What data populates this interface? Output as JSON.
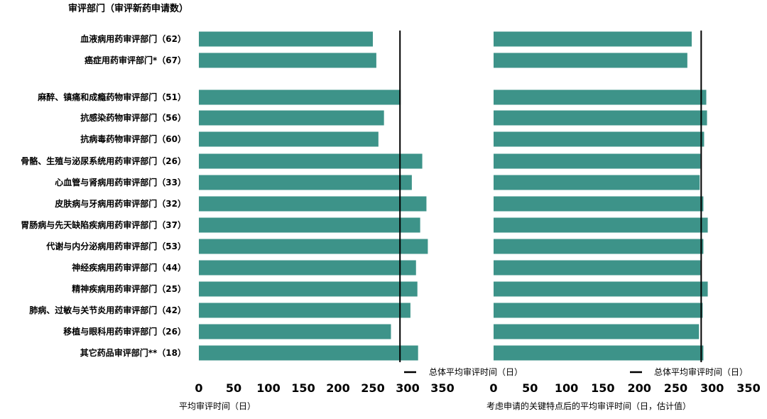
{
  "chart_data": {
    "type": "bar",
    "orientation": "horizontal",
    "header": "审评部门（审评新药申请数）",
    "categories": [
      "血液病用药审评部门（62）",
      "癌症用药审评部门*（67）",
      "麻醉、镇痛和成瘾药物审评部门（51）",
      "抗感染药物审评部门（56）",
      "抗病毒药物审评部门（60）",
      "骨骼、生殖与泌尿系统用药审评部门（26）",
      "心血管与肾病用药审评部门（33）",
      "皮肤病与牙病用药审评部门（32）",
      "胃肠病与先天缺陷疾病用药审评部门（37）",
      "代谢与内分泌病用药审评部门（53）",
      "神经疾病用药审评部门（44）",
      "精神疾病用药审评部门（25）",
      "肺病、过敏与关节炎用药审评部门（42）",
      "移植与眼科用药审评部门（26）",
      "其它药品审评部门**（18）"
    ],
    "bar_color": "#3d9389",
    "panels": [
      {
        "xlabel": "平均审评时间（日）",
        "xlim": [
          0,
          350
        ],
        "xticks": [
          "0",
          "50",
          "100",
          "150",
          "200",
          "250",
          "300",
          "350"
        ],
        "values": [
          250,
          255,
          290,
          266,
          258,
          321,
          306,
          327,
          318,
          329,
          312,
          314,
          304,
          276,
          315
        ],
        "reference_line": 289,
        "legend": "总体平均审评时间（日）"
      },
      {
        "xlabel": "考虑申请的关键特点后的平均审评时间（日，估计值）",
        "xlim": [
          0,
          350
        ],
        "xticks": [
          "0",
          "50",
          "100",
          "150",
          "200",
          "250",
          "300",
          "350"
        ],
        "values": [
          272,
          266,
          292,
          293,
          289,
          284,
          283,
          288,
          294,
          288,
          284,
          294,
          287,
          282,
          288
        ],
        "reference_line": 285,
        "legend": "总体平均审评时间（日）"
      }
    ]
  }
}
